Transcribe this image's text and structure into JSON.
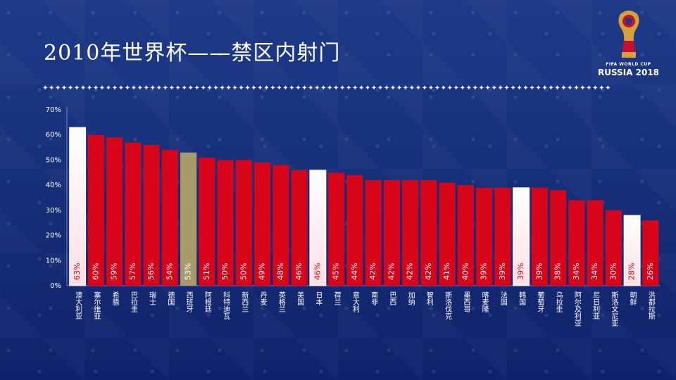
{
  "title": "2010年世界杯——禁区内射门",
  "logo": {
    "line1": "FIFA WORLD CUP",
    "line2": "RUSSIA 2018"
  },
  "divider": "✦✦✦✦✦✦✦✦✦✦✦✦✦✦✦✦✦✦✦✦✦✦✦✦✦✦✦✦✦✦✦✦✦✦✦✦✦✦✦✦✦✦✦✦✦✦✦✦✦✦✦✦✦✦✦✦✦✦✦✦✦✦✦✦✦✦✦✦✦✦✦✦✦✦✦✦✦✦✦✦✦✦✦✦✦✦✦✦✦✦",
  "chart_data": {
    "type": "bar",
    "title": "2010年世界杯——禁区内射门",
    "categories": [
      "澳大利亚",
      "塞尔维亚",
      "希腊",
      "巴拉圭",
      "瑞士",
      "德国",
      "西班牙",
      "阿根廷",
      "科特迪瓦",
      "新西兰",
      "丹麦",
      "英格兰",
      "美国",
      "日本",
      "荷兰",
      "意大利",
      "南非",
      "巴西",
      "加纳",
      "智利",
      "斯洛伐克",
      "墨西哥",
      "喀麦隆",
      "法国",
      "韩国",
      "葡萄牙",
      "乌拉圭",
      "阿尔及利亚",
      "尼日利亚",
      "斯洛文尼亚",
      "朝鲜",
      "洪都拉斯"
    ],
    "values": [
      63,
      60,
      59,
      57,
      56,
      54,
      53,
      51,
      50,
      50,
      49,
      48,
      46,
      46,
      45,
      44,
      42,
      42,
      42,
      42,
      41,
      40,
      39,
      39,
      39,
      39,
      38,
      34,
      34,
      30,
      28,
      26
    ],
    "value_labels": [
      "63%",
      "60%",
      "59%",
      "57%",
      "56%",
      "54%",
      "53%",
      "51%",
      "50%",
      "50%",
      "49%",
      "48%",
      "46%",
      "46%",
      "45%",
      "44%",
      "42%",
      "42%",
      "42%",
      "42%",
      "41%",
      "40%",
      "39%",
      "39%",
      "39%",
      "39%",
      "38%",
      "34%",
      "34%",
      "30%",
      "28%",
      "26%"
    ],
    "highlight": {
      "light": [
        0,
        13,
        24,
        30
      ],
      "gold": [
        6
      ]
    },
    "y_ticks": [
      "0%",
      "10%",
      "20%",
      "30%",
      "40%",
      "50%",
      "60%",
      "70%"
    ],
    "ylim": [
      0,
      70
    ],
    "colors": {
      "bar": "#d8041a",
      "light": "#ffe0e4",
      "gold": "#a89b6a",
      "text": "#ffffff"
    }
  }
}
